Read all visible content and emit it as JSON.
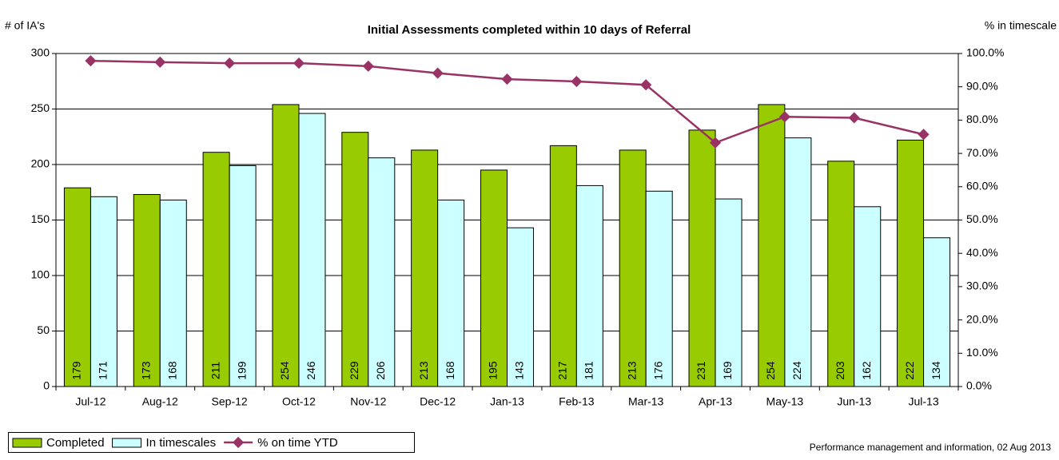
{
  "chart_data": {
    "type": "bar",
    "title": "Initial Assessments completed within 10 days of Referral",
    "y_axis_label": "# of IA's",
    "y2_axis_label": "% in timescale",
    "note": "Performance management and information, 02 Aug 2013",
    "categories": [
      "Jul-12",
      "Aug-12",
      "Sep-12",
      "Oct-12",
      "Nov-12",
      "Dec-12",
      "Jan-13",
      "Feb-13",
      "Mar-13",
      "Apr-13",
      "May-13",
      "Jun-13",
      "Jul-13"
    ],
    "series": [
      {
        "name": "Completed",
        "type": "bar",
        "color": "#99cc00",
        "values": [
          179,
          173,
          211,
          254,
          229,
          213,
          195,
          217,
          213,
          231,
          254,
          203,
          222
        ]
      },
      {
        "name": "In timescales",
        "type": "bar",
        "color": "#ccffff",
        "values": [
          171,
          168,
          199,
          246,
          206,
          168,
          143,
          181,
          176,
          169,
          224,
          162,
          134
        ]
      },
      {
        "name": "% on time YTD",
        "type": "line",
        "axis": "y2",
        "color": "#993366",
        "values": [
          97.8,
          97.4,
          97.1,
          97.1,
          96.2,
          94.1,
          92.3,
          91.6,
          90.6,
          73.2,
          81.0,
          80.7,
          75.7
        ]
      }
    ],
    "ylim": [
      0,
      300
    ],
    "yticks": [
      0,
      50,
      100,
      150,
      200,
      250,
      300
    ],
    "y2lim": [
      0,
      100
    ],
    "y2ticks": [
      {
        "value": 0,
        "label": "0.0%"
      },
      {
        "value": 10,
        "label": "10.0%"
      },
      {
        "value": 20,
        "label": "20.0%"
      },
      {
        "value": 30,
        "label": "30.0%"
      },
      {
        "value": 40,
        "label": "40.0%"
      },
      {
        "value": 50,
        "label": "50.0%"
      },
      {
        "value": 60,
        "label": "60.0%"
      },
      {
        "value": 70,
        "label": "70.0%"
      },
      {
        "value": 80,
        "label": "80.0%"
      },
      {
        "value": 90,
        "label": "90.0%"
      },
      {
        "value": 100,
        "label": "100.0%"
      }
    ],
    "grid": true,
    "legend": "bottom-left"
  }
}
